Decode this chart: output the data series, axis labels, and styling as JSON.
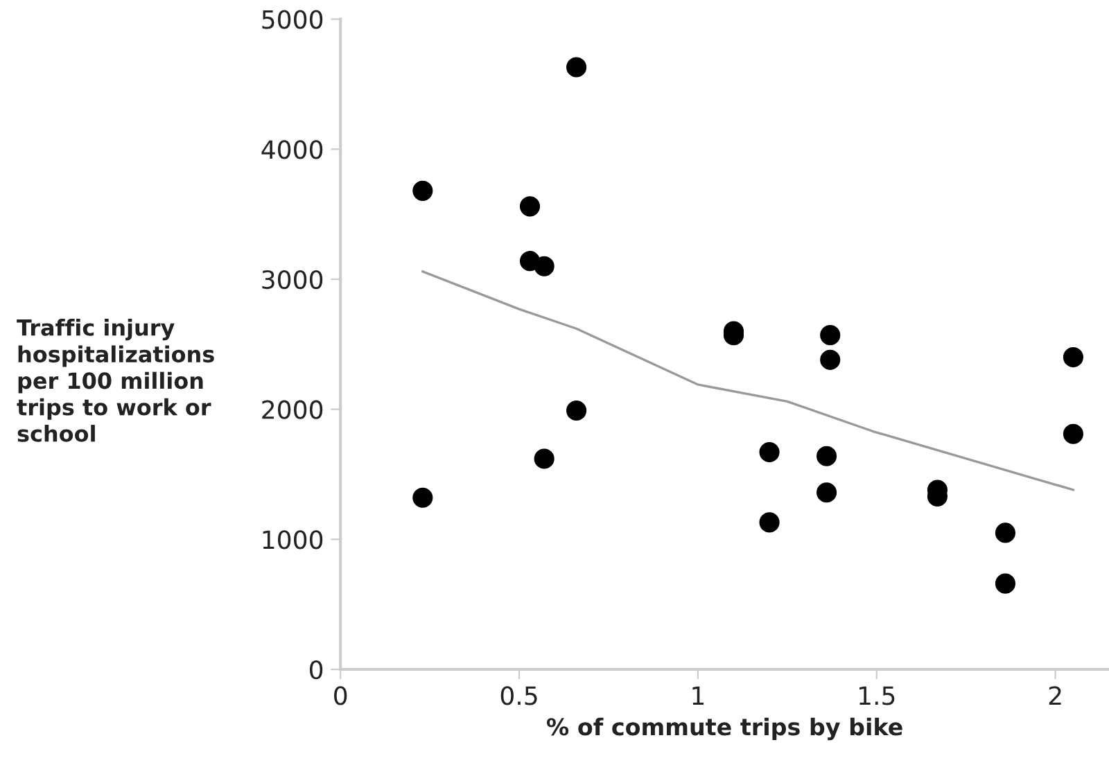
{
  "chart_data": {
    "type": "scatter",
    "xlabel": "% of commute trips by bike",
    "ylabel": "Traffic injury\nhospitalizations\nper 100 million\ntrips to work or\nschool",
    "xlim": [
      0,
      2.15
    ],
    "xticks": [
      0,
      0.5,
      1,
      1.5,
      2
    ],
    "ylim": [
      0,
      5000
    ],
    "yticks": [
      0,
      1000,
      2000,
      3000,
      4000,
      5000
    ],
    "grid": false,
    "legend": false,
    "series": [
      {
        "color": "#000000",
        "marker": "circle",
        "x": [
          0.23,
          0.23,
          0.66,
          0.53,
          0.53,
          0.57,
          0.66,
          0.57,
          1.1,
          1.1,
          1.2,
          1.2,
          1.37,
          1.37,
          1.36,
          1.36,
          1.67,
          1.67,
          1.86,
          1.86,
          2.05,
          2.05
        ],
        "values": [
          3680,
          1320,
          4630,
          3560,
          3140,
          3100,
          1990,
          1620,
          2600,
          2570,
          1670,
          1130,
          2570,
          2380,
          1640,
          1360,
          1380,
          1330,
          1050,
          660,
          2400,
          1810
        ]
      },
      {
        "type": "line",
        "color": "#999999",
        "marker": "none",
        "line_style": "solid",
        "x": [
          0.23,
          0.5,
          0.66,
          1,
          1.25,
          1.49,
          2.05
        ],
        "values": [
          3060,
          2770,
          2620,
          2190,
          2060,
          1830,
          1380
        ]
      }
    ]
  }
}
